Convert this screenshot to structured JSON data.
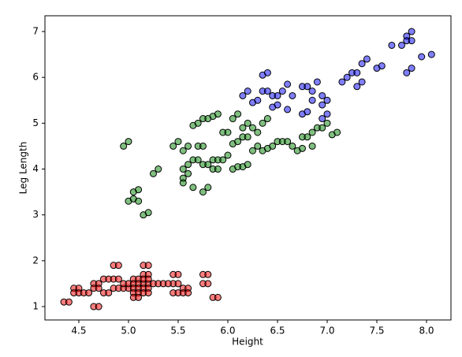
{
  "chart_data": {
    "type": "scatter",
    "xlabel": "Height",
    "ylabel": "Leg Length",
    "xlim": [
      4.159,
      8.246
    ],
    "ylim": [
      0.708,
      7.344
    ],
    "xticks": [
      {
        "value": 4.5,
        "label": "4.5"
      },
      {
        "value": 5.0,
        "label": "5.0"
      },
      {
        "value": 5.5,
        "label": "5.5"
      },
      {
        "value": 6.0,
        "label": "6.0"
      },
      {
        "value": 6.5,
        "label": "6.5"
      },
      {
        "value": 7.0,
        "label": "7.0"
      },
      {
        "value": 7.5,
        "label": "7.5"
      },
      {
        "value": 8.0,
        "label": "8.0"
      }
    ],
    "yticks": [
      1,
      2,
      3,
      4,
      5,
      6,
      7
    ],
    "series": [
      {
        "color": "#ff0000",
        "x": [
          4.35,
          4.4,
          4.45,
          4.5,
          4.45,
          4.5,
          4.55,
          4.6,
          4.65,
          4.7,
          4.65,
          4.7,
          4.65,
          4.7,
          4.75,
          4.8,
          4.75,
          4.8,
          4.85,
          4.9,
          4.85,
          4.9,
          4.85,
          4.9,
          4.95,
          5.0,
          4.95,
          5.0,
          5.05,
          5.1,
          5.05,
          5.1,
          5.05,
          5.1,
          5.05,
          5.1,
          5.05,
          5.1,
          5.15,
          5.2,
          5.15,
          5.2,
          5.15,
          5.2,
          5.15,
          5.2,
          5.25,
          5.3,
          5.45,
          5.5,
          5.45,
          5.5,
          5.45,
          5.5,
          5.55,
          5.6,
          5.55,
          5.6,
          5.75,
          5.8,
          5.75,
          5.8,
          5.85,
          5.9,
          5.15,
          5.2,
          5.35,
          5.4,
          5.15,
          5.2
        ],
        "values": [
          1.1,
          1.1,
          1.4,
          1.4,
          1.3,
          1.3,
          1.3,
          1.3,
          1.5,
          1.5,
          1.0,
          1.0,
          1.4,
          1.4,
          1.3,
          1.3,
          1.6,
          1.6,
          1.9,
          1.9,
          1.6,
          1.6,
          1.4,
          1.4,
          1.4,
          1.4,
          1.5,
          1.5,
          1.6,
          1.6,
          1.5,
          1.5,
          1.4,
          1.4,
          1.3,
          1.3,
          1.2,
          1.2,
          1.5,
          1.5,
          1.7,
          1.7,
          1.9,
          1.9,
          1.4,
          1.4,
          1.5,
          1.5,
          1.7,
          1.7,
          1.5,
          1.5,
          1.3,
          1.3,
          1.4,
          1.4,
          1.3,
          1.3,
          1.7,
          1.7,
          1.5,
          1.5,
          1.2,
          1.2,
          1.6,
          1.6,
          1.5,
          1.5,
          1.3,
          1.3
        ]
      },
      {
        "color": "#008000",
        "x": [
          4.95,
          5.0,
          5.0,
          5.05,
          5.05,
          5.1,
          5.1,
          5.15,
          5.2,
          5.25,
          5.3,
          5.45,
          5.5,
          5.55,
          5.6,
          5.55,
          5.6,
          5.55,
          5.6,
          5.55,
          5.65,
          5.65,
          5.7,
          5.65,
          5.7,
          5.7,
          5.75,
          5.75,
          5.8,
          5.75,
          5.8,
          5.75,
          5.8,
          5.85,
          5.9,
          5.85,
          5.9,
          5.85,
          5.9,
          5.95,
          6.0,
          5.95,
          6.0,
          6.05,
          6.1,
          6.05,
          6.1,
          6.05,
          6.1,
          6.15,
          6.2,
          6.15,
          6.2,
          6.15,
          6.2,
          6.25,
          6.3,
          6.25,
          6.3,
          6.35,
          6.4,
          6.35,
          6.4,
          6.45,
          6.5,
          6.55,
          6.6,
          6.65,
          6.7,
          6.75,
          6.8,
          6.85,
          6.9,
          6.95,
          7.0,
          7.05,
          7.1,
          6.75,
          6.85
        ],
        "values": [
          4.5,
          4.6,
          3.3,
          3.35,
          3.5,
          3.55,
          3.3,
          3.0,
          3.05,
          3.9,
          4.0,
          4.5,
          4.6,
          4.4,
          4.5,
          4.0,
          4.1,
          3.8,
          3.9,
          3.7,
          3.6,
          4.95,
          5.0,
          4.2,
          4.2,
          4.5,
          4.5,
          3.5,
          3.6,
          5.1,
          5.1,
          4.1,
          4.1,
          5.15,
          5.2,
          4.0,
          4.0,
          4.2,
          4.2,
          4.8,
          4.8,
          4.2,
          4.3,
          4.55,
          4.6,
          5.1,
          5.2,
          4.0,
          4.05,
          4.7,
          4.7,
          4.9,
          5.0,
          4.05,
          4.1,
          4.4,
          4.5,
          4.9,
          4.8,
          5.0,
          5.1,
          4.4,
          4.45,
          4.5,
          4.6,
          4.6,
          4.6,
          4.5,
          4.4,
          4.7,
          4.7,
          4.8,
          4.9,
          4.9,
          5.0,
          4.75,
          4.8,
          4.45,
          4.5
        ]
      },
      {
        "color": "#0000ff",
        "x": [
          6.15,
          6.2,
          6.25,
          6.3,
          6.35,
          6.4,
          6.35,
          6.4,
          6.45,
          6.5,
          6.45,
          6.5,
          6.55,
          6.6,
          6.6,
          6.65,
          6.75,
          6.8,
          6.75,
          6.8,
          6.85,
          6.9,
          6.85,
          6.95,
          6.95,
          7.0,
          6.95,
          7.0,
          7.15,
          7.2,
          7.25,
          7.3,
          7.3,
          7.35,
          7.35,
          7.4,
          7.5,
          7.55,
          7.65,
          7.75,
          7.8,
          7.85,
          7.8,
          7.85,
          7.8,
          7.85,
          7.95,
          8.05
        ],
        "values": [
          5.6,
          5.7,
          5.45,
          5.5,
          6.05,
          6.1,
          5.7,
          5.7,
          5.6,
          5.6,
          5.35,
          5.4,
          5.7,
          5.85,
          5.3,
          5.6,
          5.8,
          5.8,
          5.2,
          5.25,
          5.7,
          5.9,
          5.5,
          5.6,
          5.1,
          5.2,
          5.4,
          5.5,
          5.9,
          6.0,
          6.1,
          6.1,
          5.8,
          5.9,
          6.3,
          6.4,
          6.2,
          6.25,
          6.7,
          6.7,
          6.9,
          7.0,
          6.1,
          6.2,
          6.8,
          6.8,
          6.45,
          6.5
        ]
      }
    ]
  }
}
